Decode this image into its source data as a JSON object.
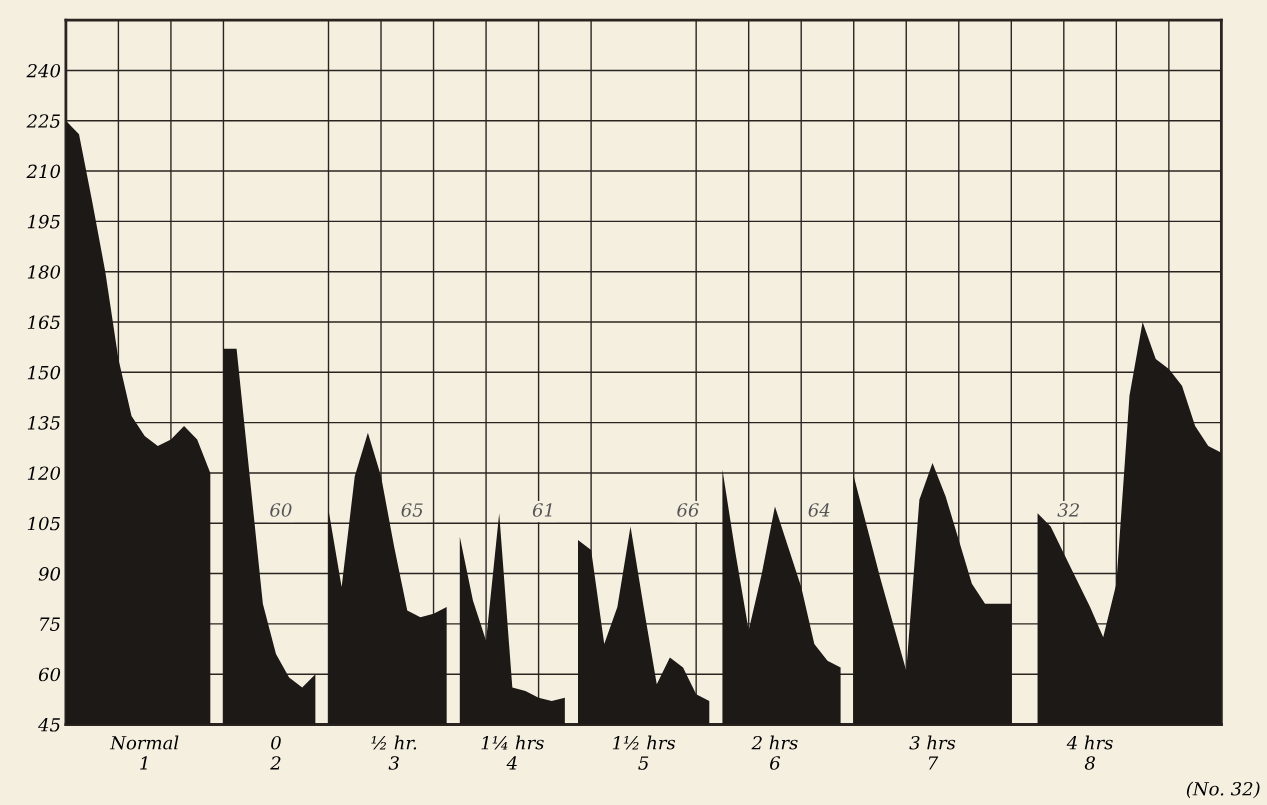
{
  "chart_data": {
    "type": "area",
    "categories": [
      null,
      null,
      null,
      null,
      null,
      null,
      "Normal\n1",
      null,
      null,
      null,
      null,
      null,
      null,
      null,
      null,
      null,
      "0\n2",
      null,
      null,
      null,
      null,
      null,
      null,
      null,
      null,
      "½ hr.\n3",
      null,
      null,
      null,
      null,
      null,
      null,
      null,
      null,
      "1¼ hrs\n4",
      null,
      null,
      null,
      null,
      null,
      null,
      null,
      null,
      null,
      "1½ hrs\n5",
      null,
      null,
      null,
      null,
      null,
      null,
      null,
      null,
      null,
      "2 hrs\n6",
      null,
      null,
      null,
      null,
      null,
      null,
      null,
      null,
      null,
      null,
      null,
      "3 hrs\n7",
      null,
      null,
      null,
      null,
      null,
      null,
      null,
      null,
      null,
      null,
      null,
      "4 hrs\n8",
      null,
      null,
      null,
      null,
      null,
      null,
      null,
      null,
      null,
      null
    ],
    "series": [
      {
        "color": "#1c1917",
        "values": [
          225,
          221,
          201,
          180,
          154,
          137,
          131,
          128,
          130,
          134,
          130,
          120,
          null,
          null,
          null,
          null,
          null,
          null,
          null,
          null,
          null,
          null,
          null,
          null,
          null,
          null,
          null,
          null,
          null,
          null,
          null,
          null,
          null,
          null,
          null,
          null,
          null,
          null,
          null,
          null,
          null,
          null,
          null,
          null,
          null,
          null,
          null,
          null,
          null,
          null,
          null,
          null,
          null,
          null,
          null,
          null,
          null,
          null,
          null,
          null,
          null,
          null,
          null,
          null,
          null,
          null,
          null,
          null,
          null,
          null,
          null,
          null,
          null,
          null,
          null,
          null,
          null,
          null,
          null,
          null,
          null,
          null,
          null,
          null,
          null,
          null,
          null,
          null,
          null
        ]
      },
      {
        "color": "#1c1917",
        "values": [
          null,
          null,
          null,
          null,
          null,
          null,
          null,
          null,
          null,
          null,
          null,
          null,
          157,
          157,
          119,
          81,
          66,
          59,
          56,
          60,
          null,
          null,
          null,
          null,
          null,
          null,
          null,
          null,
          null,
          null,
          null,
          null,
          null,
          null,
          null,
          null,
          null,
          null,
          null,
          null,
          null,
          null,
          null,
          null,
          null,
          null,
          null,
          null,
          null,
          null,
          null,
          null,
          null,
          null,
          null,
          null,
          null,
          null,
          null,
          null,
          null,
          null,
          null,
          null,
          null,
          null,
          null,
          null,
          null,
          null,
          null,
          null,
          null,
          null,
          null,
          null,
          null,
          null,
          null,
          null,
          null,
          null,
          null,
          null,
          null,
          null,
          null,
          null,
          null
        ]
      },
      {
        "color": "#1c1917",
        "values": [
          null,
          null,
          null,
          null,
          null,
          null,
          null,
          null,
          null,
          null,
          null,
          null,
          null,
          null,
          null,
          null,
          null,
          null,
          null,
          null,
          109,
          86,
          119,
          132,
          119,
          98,
          79,
          77,
          78,
          80,
          null,
          null,
          null,
          null,
          null,
          null,
          null,
          null,
          null,
          null,
          null,
          null,
          null,
          null,
          null,
          null,
          null,
          null,
          null,
          null,
          null,
          null,
          null,
          null,
          null,
          null,
          null,
          null,
          null,
          null,
          null,
          null,
          null,
          null,
          null,
          null,
          null,
          null,
          null,
          null,
          null,
          null,
          null,
          null,
          null,
          null,
          null,
          null,
          null,
          null,
          null,
          null,
          null,
          null,
          null,
          null,
          null,
          null,
          null
        ]
      },
      {
        "color": "#1c1917",
        "values": [
          null,
          null,
          null,
          null,
          null,
          null,
          null,
          null,
          null,
          null,
          null,
          null,
          null,
          null,
          null,
          null,
          null,
          null,
          null,
          null,
          null,
          null,
          null,
          null,
          null,
          null,
          null,
          null,
          null,
          null,
          101,
          82,
          70,
          108,
          56,
          55,
          53,
          52,
          53,
          null,
          null,
          null,
          null,
          null,
          null,
          null,
          null,
          null,
          null,
          null,
          null,
          null,
          null,
          null,
          null,
          null,
          null,
          null,
          null,
          null,
          null,
          null,
          null,
          null,
          null,
          null,
          null,
          null,
          null,
          null,
          null,
          null,
          null,
          null,
          null,
          null,
          null,
          null,
          null,
          null,
          null,
          null,
          null,
          null,
          null,
          null,
          null,
          null,
          null
        ]
      },
      {
        "color": "#1c1917",
        "values": [
          null,
          null,
          null,
          null,
          null,
          null,
          null,
          null,
          null,
          null,
          null,
          null,
          null,
          null,
          null,
          null,
          null,
          null,
          null,
          null,
          null,
          null,
          null,
          null,
          null,
          null,
          null,
          null,
          null,
          null,
          null,
          null,
          null,
          null,
          null,
          null,
          null,
          null,
          null,
          100,
          97,
          69,
          80,
          104,
          80,
          57,
          65,
          62,
          54,
          52,
          null,
          null,
          null,
          null,
          null,
          null,
          null,
          null,
          null,
          null,
          null,
          null,
          null,
          null,
          null,
          null,
          null,
          null,
          null,
          null,
          null,
          null,
          null,
          null,
          null,
          null,
          null,
          null,
          null,
          null,
          null,
          null,
          null,
          null,
          null,
          null,
          null,
          null,
          null
        ]
      },
      {
        "color": "#1c1917",
        "values": [
          null,
          null,
          null,
          null,
          null,
          null,
          null,
          null,
          null,
          null,
          null,
          null,
          null,
          null,
          null,
          null,
          null,
          null,
          null,
          null,
          null,
          null,
          null,
          null,
          null,
          null,
          null,
          null,
          null,
          null,
          null,
          null,
          null,
          null,
          null,
          null,
          null,
          null,
          null,
          null,
          null,
          null,
          null,
          null,
          null,
          null,
          null,
          null,
          null,
          null,
          121,
          96,
          73,
          90,
          110,
          98,
          86,
          69,
          64,
          62,
          null,
          null,
          null,
          null,
          null,
          null,
          null,
          null,
          null,
          null,
          null,
          null,
          null,
          null,
          null,
          null,
          null,
          null,
          null,
          null,
          null,
          null,
          null,
          null,
          null,
          null,
          null,
          null,
          null
        ]
      },
      {
        "color": "#1c1917",
        "values": [
          null,
          null,
          null,
          null,
          null,
          null,
          null,
          null,
          null,
          null,
          null,
          null,
          null,
          null,
          null,
          null,
          null,
          null,
          null,
          null,
          null,
          null,
          null,
          null,
          null,
          null,
          null,
          null,
          null,
          null,
          null,
          null,
          null,
          null,
          null,
          null,
          null,
          null,
          null,
          null,
          null,
          null,
          null,
          null,
          null,
          null,
          null,
          null,
          null,
          null,
          null,
          null,
          null,
          null,
          null,
          null,
          null,
          null,
          null,
          null,
          119,
          104,
          89,
          75,
          61,
          112,
          123,
          113,
          100,
          87,
          81,
          81,
          81,
          null,
          null,
          null,
          null,
          null,
          null,
          null,
          null,
          null,
          null,
          null,
          null,
          null,
          null,
          null,
          null
        ]
      },
      {
        "color": "#1c1917",
        "values": [
          null,
          null,
          null,
          null,
          null,
          null,
          null,
          null,
          null,
          null,
          null,
          null,
          null,
          null,
          null,
          null,
          null,
          null,
          null,
          null,
          null,
          null,
          null,
          null,
          null,
          null,
          null,
          null,
          null,
          null,
          null,
          null,
          null,
          null,
          null,
          null,
          null,
          null,
          null,
          null,
          null,
          null,
          null,
          null,
          null,
          null,
          null,
          null,
          null,
          null,
          null,
          null,
          null,
          null,
          null,
          null,
          null,
          null,
          null,
          null,
          null,
          null,
          null,
          null,
          null,
          null,
          null,
          null,
          null,
          null,
          null,
          null,
          null,
          null,
          108,
          104,
          96,
          88,
          80,
          71,
          87,
          143,
          165,
          154,
          151,
          146,
          134,
          128,
          126
        ]
      }
    ],
    "ylim": [
      45,
      255
    ],
    "yticks": [
      45,
      60,
      75,
      90,
      105,
      120,
      135,
      150,
      165,
      180,
      195,
      210,
      225,
      240
    ],
    "grid": true,
    "annotations": [
      "60",
      "65",
      "61",
      "66",
      "64",
      "32",
      "(No. 32)"
    ]
  }
}
